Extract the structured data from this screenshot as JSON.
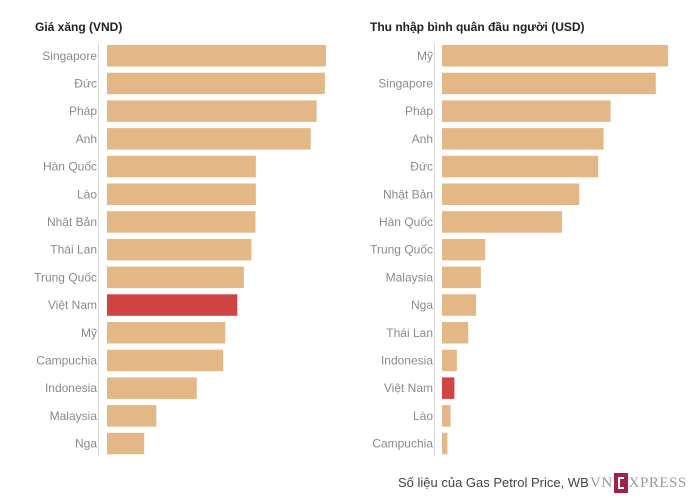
{
  "footer": {
    "source": "Số liệu của Gas Petrol Price, WB"
  },
  "logo": {
    "left": "VN",
    "right": "XPRESS"
  },
  "colors": {
    "bar": "#e3b886",
    "highlight": "#d04443"
  },
  "chart_data": [
    {
      "type": "bar",
      "orientation": "horizontal",
      "title": "Giá xăng (VND)",
      "categories": [
        "Singapore",
        "Đức",
        "Pháp",
        "Anh",
        "Hàn Quốc",
        "Lào",
        "Nhật Bản",
        "Thái Lan",
        "Trung Quốc",
        "Việt Nam",
        "Mỹ",
        "Campuchia",
        "Indonesia",
        "Malaysia",
        "Nga"
      ],
      "values": [
        100,
        99.5,
        95.7,
        93,
        68,
        68,
        67.8,
        66,
        62.5,
        59.5,
        54,
        53,
        41,
        22.5,
        17
      ],
      "highlight": "Việt Nam",
      "xlim": [
        0,
        100
      ],
      "grid": false
    },
    {
      "type": "bar",
      "orientation": "horizontal",
      "title": "Thu nhập bình quân đầu người (USD)",
      "categories": [
        "Mỹ",
        "Singapore",
        "Pháp",
        "Anh",
        "Đức",
        "Nhật Bản",
        "Hàn Quốc",
        "Trung Quốc",
        "Malaysia",
        "Nga",
        "Thái Lan",
        "Indonesia",
        "Việt Nam",
        "Lào",
        "Campuchia"
      ],
      "values": [
        100,
        94.6,
        74.6,
        71.5,
        69.1,
        60.7,
        53.1,
        19.1,
        17.2,
        15.1,
        11.6,
        6.6,
        5.5,
        3.8,
        2.4
      ],
      "highlight": "Việt Nam",
      "xlim": [
        0,
        100
      ],
      "grid": false
    }
  ]
}
